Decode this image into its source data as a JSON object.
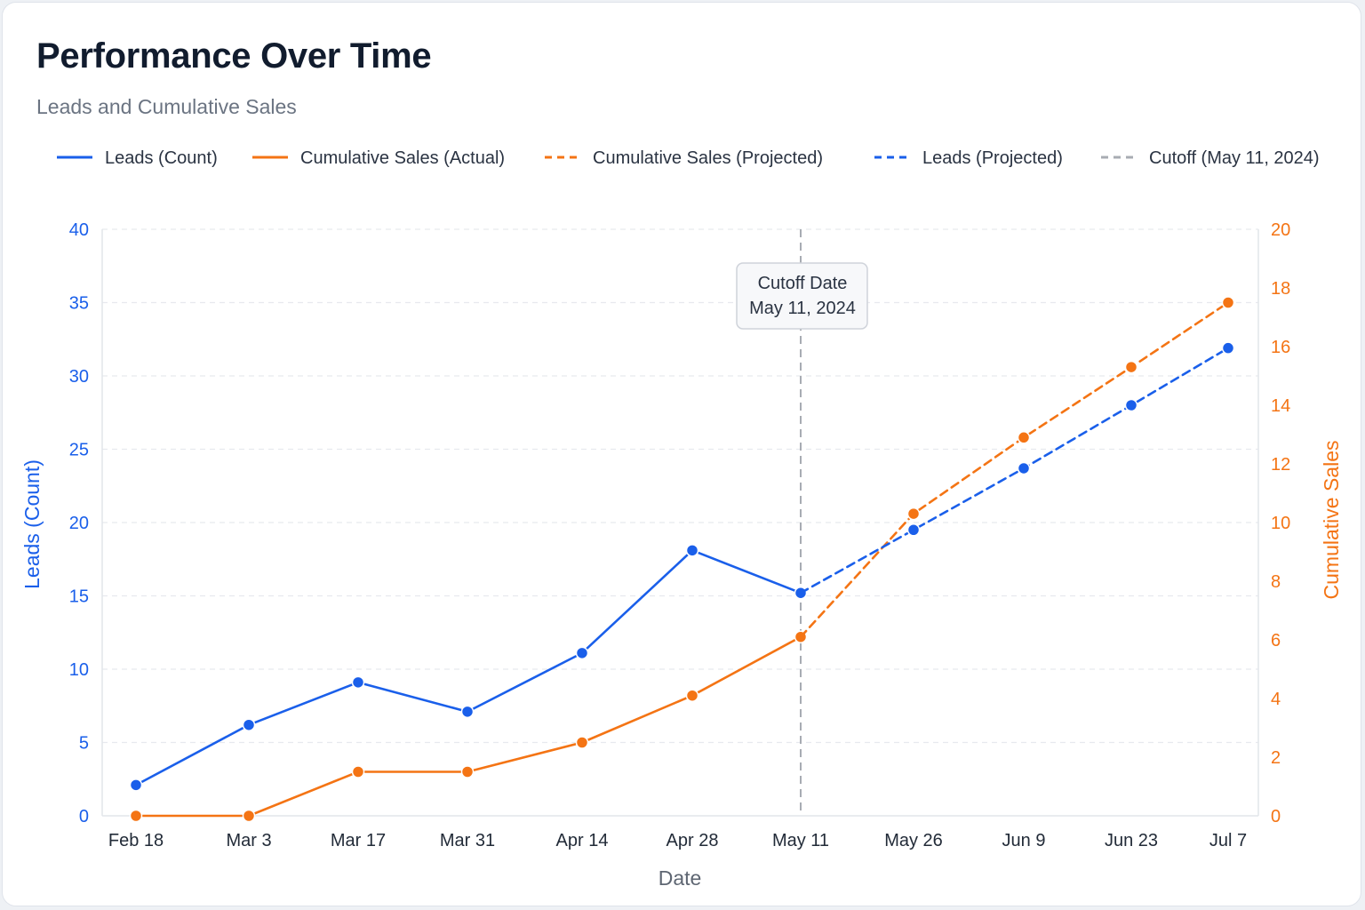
{
  "header": {
    "title": "Performance Over Time",
    "subtitle": "Leads and Cumulative Sales"
  },
  "colors": {
    "leads": "#1a5fea",
    "sales": "#f47414",
    "cutoff": "#a8acb3",
    "grid": "#e7e9ee"
  },
  "chart_data": {
    "type": "line",
    "title": "Performance Over Time",
    "subtitle": "Leads and Cumulative Sales",
    "xlabel": "Date",
    "ylabel_left": "Leads (Count)",
    "ylabel_right": "Cumulative Sales",
    "x": [
      "Feb 18",
      "Mar 3",
      "Mar 17",
      "Mar 31",
      "Apr 14",
      "Apr 28",
      "May 11",
      "May 26",
      "Jun 9",
      "Jun 23",
      "Jul 7"
    ],
    "ylim_left": [
      0,
      40
    ],
    "ylim_right": [
      0,
      20
    ],
    "yticks_left": [
      0,
      5,
      10,
      15,
      20,
      25,
      30,
      35,
      40
    ],
    "yticks_right": [
      0,
      2,
      4,
      6,
      8,
      10,
      12,
      14,
      16,
      18,
      20
    ],
    "grid": true,
    "legend_position": "top",
    "legend": [
      {
        "label": "Leads (Count)",
        "color": "#1a5fea",
        "dashed": false
      },
      {
        "label": "Cumulative Sales (Actual)",
        "color": "#f47414",
        "dashed": false
      },
      {
        "label": "Cumulative Sales (Projected)",
        "color": "#f47414",
        "dashed": true
      },
      {
        "label": "Leads (Projected)",
        "color": "#1a5fea",
        "dashed": true
      },
      {
        "label": "Cutoff (May 11, 2024)",
        "color": "#a8acb3",
        "dashed": true
      }
    ],
    "series": [
      {
        "name": "Leads (Count)",
        "axis": "left",
        "dashed": false,
        "color": "#1a5fea",
        "points": [
          [
            "Feb 18",
            2.1
          ],
          [
            "Mar 3",
            6.2
          ],
          [
            "Mar 17",
            9.1
          ],
          [
            "Mar 31",
            7.1
          ],
          [
            "Apr 14",
            11.1
          ],
          [
            "Apr 28",
            18.1
          ],
          [
            "May 11",
            15.2
          ]
        ]
      },
      {
        "name": "Leads (Projected)",
        "axis": "left",
        "dashed": true,
        "color": "#1a5fea",
        "points": [
          [
            "May 11",
            15.2
          ],
          [
            "May 26",
            19.5
          ],
          [
            "Jun 9",
            23.7
          ],
          [
            "Jun 23",
            28.0
          ],
          [
            "Jul 7",
            31.9
          ]
        ]
      },
      {
        "name": "Cumulative Sales (Actual)",
        "axis": "right",
        "dashed": false,
        "color": "#f47414",
        "points": [
          [
            "Feb 18",
            0
          ],
          [
            "Mar 3",
            0
          ],
          [
            "Mar 17",
            1.5
          ],
          [
            "Mar 31",
            1.5
          ],
          [
            "Apr 14",
            2.5
          ],
          [
            "Apr 28",
            4.1
          ],
          [
            "May 11",
            6.1
          ]
        ]
      },
      {
        "name": "Cumulative Sales (Projected)",
        "axis": "right",
        "dashed": true,
        "color": "#f47414",
        "points": [
          [
            "May 11",
            6.1
          ],
          [
            "May 26",
            10.3
          ],
          [
            "Jun 9",
            12.9
          ],
          [
            "Jun 23",
            15.3
          ],
          [
            "Jul 7",
            17.5
          ]
        ]
      }
    ],
    "cutoff": {
      "x": "May 11",
      "label_line1": "Cutoff Date",
      "label_line2": "May 11, 2024"
    }
  }
}
